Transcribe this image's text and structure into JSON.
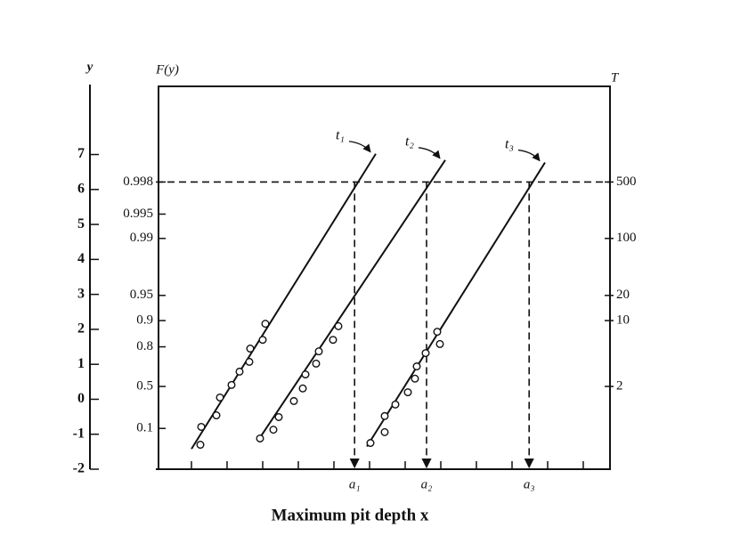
{
  "chart_data": {
    "type": "gumbel-probability",
    "x_label": "Maximum pit depth x",
    "y_label": "y",
    "f_label": "F(y)",
    "t_label": "T",
    "xlim": [
      0,
      12.75
    ],
    "xticks": [
      1,
      2,
      3,
      4,
      5,
      6,
      7,
      8,
      9,
      10,
      11,
      12
    ],
    "ylim": [
      -2,
      9
    ],
    "yticks": [
      -2,
      -1,
      0,
      1,
      2,
      3,
      4,
      5,
      6,
      7
    ],
    "fticks": [
      0.1,
      0.5,
      0.8,
      0.9,
      0.95,
      0.99,
      0.995,
      0.998
    ],
    "tticks": [
      2,
      10,
      20,
      100,
      500
    ],
    "reference_F": 0.998,
    "x_markers": [
      {
        "value": 5.58,
        "label": "a₁"
      },
      {
        "value": 7.6,
        "label": "a₂"
      },
      {
        "value": 10.48,
        "label": "a₃"
      }
    ],
    "series": [
      {
        "name": "t₁",
        "x": [
          1.25,
          1.275,
          1.7,
          1.8,
          2.125,
          2.35,
          2.625,
          2.65,
          3.0,
          3.075
        ],
        "values": [
          -1.3,
          -0.79,
          -0.46,
          0.05,
          0.41,
          0.79,
          1.07,
          1.45,
          1.7,
          2.16
        ],
        "fit_x": [
          1.0,
          6.175
        ],
        "fit_values": [
          -1.42,
          7.02
        ]
      },
      {
        "name": "t₂",
        "x": [
          2.925,
          3.3,
          3.45,
          3.875,
          4.125,
          4.2,
          4.5,
          4.575,
          4.975,
          5.125
        ],
        "values": [
          -1.12,
          -0.87,
          -0.51,
          -0.05,
          0.31,
          0.71,
          1.02,
          1.37,
          1.7,
          2.09
        ],
        "fit_x": [
          2.875,
          8.125
        ],
        "fit_values": [
          -1.17,
          6.84
        ]
      },
      {
        "name": "t₃",
        "x": [
          6.025,
          6.425,
          6.425,
          6.725,
          7.075,
          7.275,
          7.325,
          7.575,
          7.975,
          7.9
        ],
        "values": [
          -1.25,
          -0.94,
          -0.48,
          -0.15,
          0.2,
          0.59,
          0.94,
          1.32,
          1.58,
          1.93
        ],
        "fit_x": [
          5.925,
          10.925
        ],
        "fit_values": [
          -1.35,
          6.77
        ]
      }
    ]
  }
}
